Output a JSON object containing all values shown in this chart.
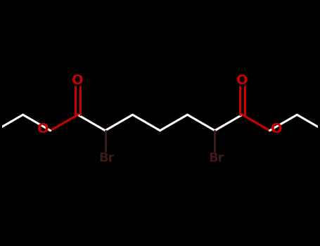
{
  "background_color": "#000000",
  "bond_color": "#ffffff",
  "oxygen_color": "#cc0000",
  "bromine_color": "#3d1a1a",
  "line_width": 2.2,
  "figure_width": 4.55,
  "figure_height": 3.5,
  "dpi": 100,
  "xlim": [
    0,
    10
  ],
  "ylim": [
    0,
    7.778
  ]
}
